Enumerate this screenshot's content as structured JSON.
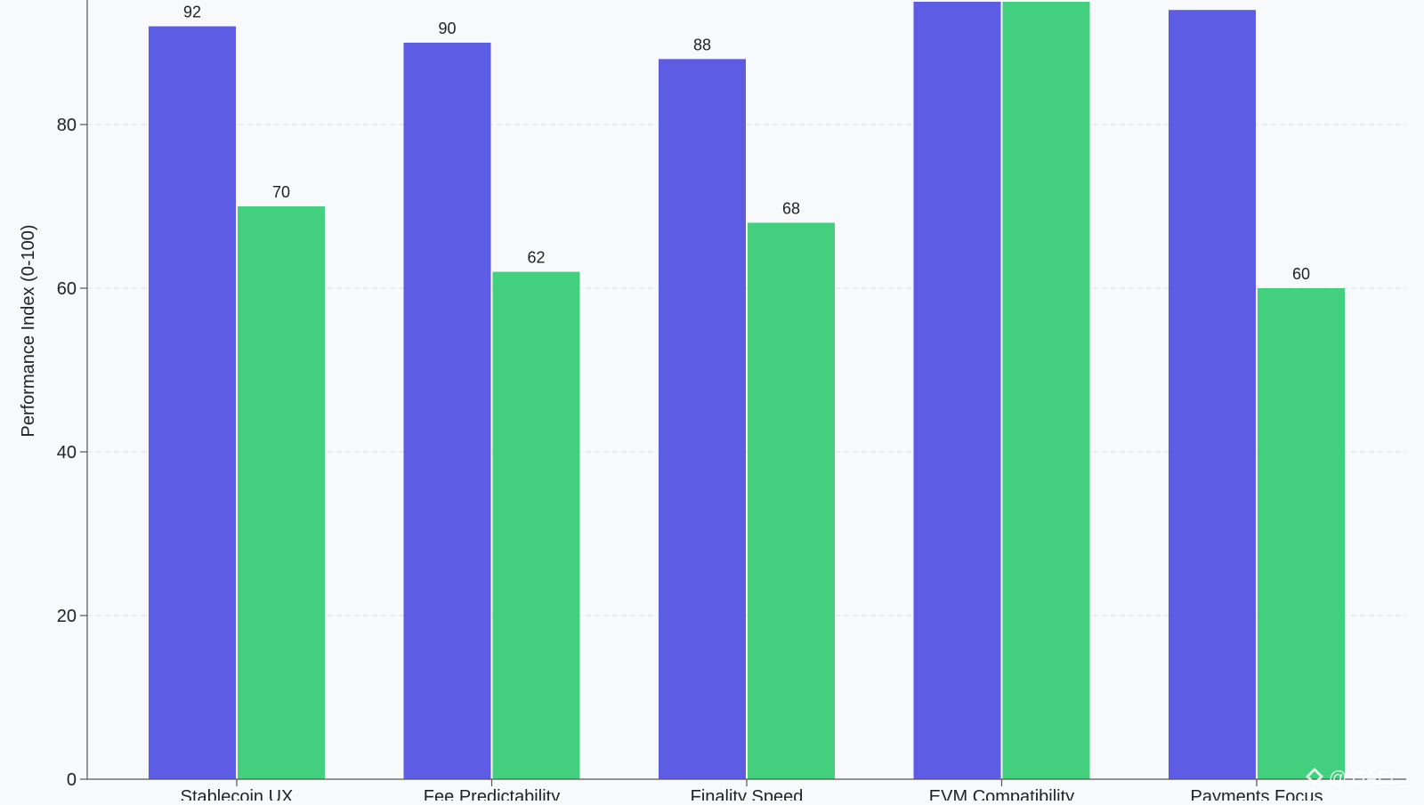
{
  "chart_data": {
    "type": "bar",
    "categories": [
      "Stablecoin UX",
      "Fee Predictability",
      "Finality Speed",
      "EVM Compatibility",
      "Payments Focus"
    ],
    "series": [
      {
        "values": [
          92,
          90,
          88,
          95,
          94
        ],
        "color": "#5c5ce5"
      },
      {
        "values": [
          70,
          62,
          68,
          95,
          60
        ],
        "color": "#42d07e"
      }
    ],
    "data_labels": [
      [
        "92",
        "90",
        "88",
        "",
        ""
      ],
      [
        "70",
        "62",
        "68",
        "",
        "60"
      ]
    ],
    "ylabel": "Performance Index (0-100)",
    "yticks": [
      0,
      20,
      40,
      60,
      80
    ],
    "ylim": [
      0,
      95
    ],
    "grid": true,
    "grid_color": "#dde1e7",
    "axis_color": "#555555"
  },
  "watermark": {
    "text": "@ GAEL_",
    "icon": "diamond-logo-icon"
  }
}
